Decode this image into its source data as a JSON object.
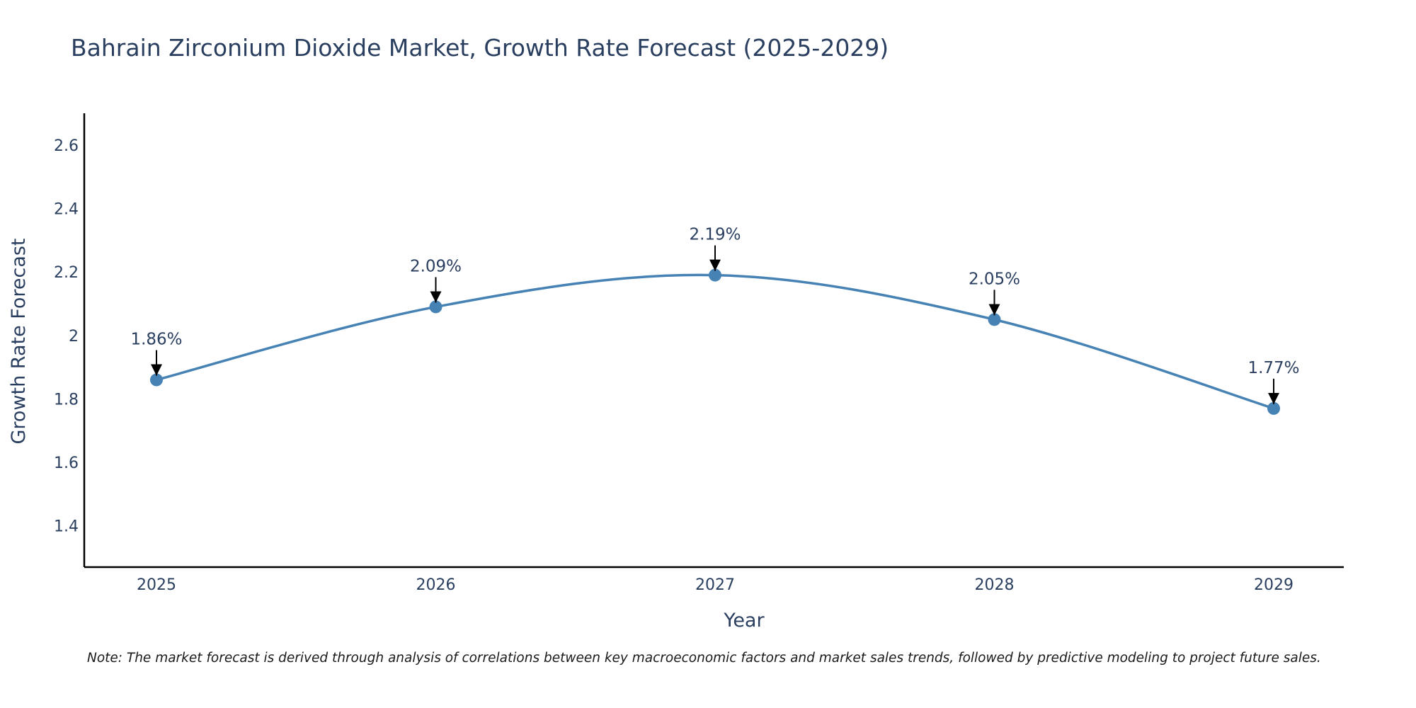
{
  "chart_data": {
    "type": "line",
    "title": "Bahrain Zirconium Dioxide Market, Growth Rate Forecast (2025-2029)",
    "xlabel": "Year",
    "ylabel": "Growth Rate Forecast",
    "categories": [
      "2025",
      "2026",
      "2027",
      "2028",
      "2029"
    ],
    "values": [
      1.86,
      2.09,
      2.19,
      2.05,
      1.77
    ],
    "annotations": [
      "1.86%",
      "2.09%",
      "2.19%",
      "2.05%",
      "1.77%"
    ],
    "yticks": [
      1.4,
      1.6,
      1.8,
      2,
      2.2,
      2.4,
      2.6
    ],
    "ytick_labels": [
      "1.4",
      "1.6",
      "1.8",
      "2",
      "2.2",
      "2.4",
      "2.6"
    ],
    "ylim": [
      1.27,
      2.7
    ],
    "grid": false,
    "line_color": "#4682b4",
    "text_color": "#2a3f5f",
    "arrow_color": "#000000",
    "axis_color": "#000000"
  },
  "note": "Note: The market forecast is derived through analysis of correlations between key macroeconomic factors and market sales trends, followed by predictive modeling to project future sales."
}
